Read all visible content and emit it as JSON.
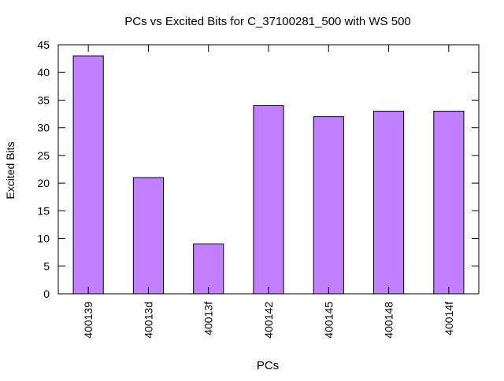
{
  "chart_data": {
    "type": "bar",
    "title": "PCs vs Excited Bits for C_37100281_500 with WS 500",
    "xlabel": "PCs",
    "ylabel": "Excited Bits",
    "categories": [
      "400139",
      "40013d",
      "40013f",
      "400142",
      "400145",
      "400148",
      "40014f"
    ],
    "values": [
      43,
      21,
      9,
      34,
      32,
      33,
      33
    ],
    "ylim": [
      0,
      45
    ],
    "yticks": [
      0,
      5,
      10,
      15,
      20,
      25,
      30,
      35,
      40,
      45
    ],
    "grid": false,
    "legend": "none",
    "bar_color": "#c080ff",
    "bar_edge_color": "#000000"
  }
}
